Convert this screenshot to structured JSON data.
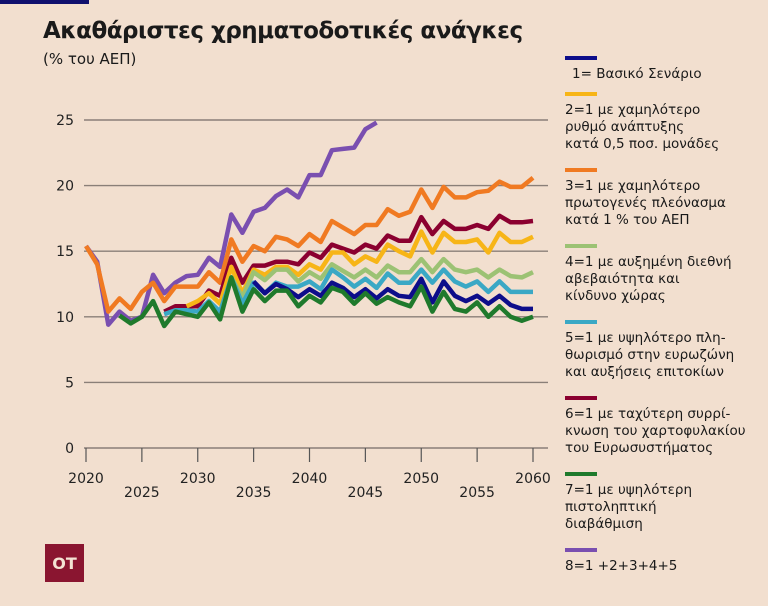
{
  "title": "Ακαθάριστες χρηματοδοτικές ανάγκες",
  "subtitle": "(% του ΑΕΠ)",
  "logo_text": "OT",
  "chart_data": {
    "type": "line",
    "title": "Ακαθάριστες χρηματοδοτικές ανάγκες",
    "ylabel": "(% του ΑΕΠ)",
    "xlim": [
      2020,
      2060
    ],
    "ylim": [
      0,
      25
    ],
    "grid": true,
    "legend_position": "right",
    "y_ticks": [
      "0",
      "5",
      "10",
      "15",
      "20",
      "25"
    ],
    "x_ticks": [
      "2020",
      "2025",
      "2030",
      "2035",
      "2040",
      "2045",
      "2050",
      "2055",
      "2060"
    ],
    "series": [
      {
        "name": "1= Βασικό Σενάριο",
        "color": "#0d0d8a",
        "start": 2035,
        "values": [
          12.7,
          11.8,
          12.5,
          12.1,
          11.5,
          12.1,
          11.6,
          12.6,
          12.2,
          11.5,
          12.1,
          11.4,
          12.1,
          11.6,
          11.5,
          12.9,
          11.1,
          12.7,
          11.6,
          11.2,
          11.6,
          11.0,
          11.6,
          10.9,
          10.6,
          10.6
        ]
      },
      {
        "name": "2=1 με χαμηλότερο\nρυθμό ανάπτυξης\nκατά 0,5 ποσ. μονάδες",
        "color": "#f7b517",
        "start": 2029,
        "values": [
          10.8,
          11.2,
          11.8,
          11.0,
          13.8,
          11.8,
          13.6,
          13.2,
          13.8,
          13.8,
          13.2,
          14.0,
          13.6,
          14.9,
          14.9,
          14.0,
          14.6,
          14.2,
          15.5,
          15.0,
          14.6,
          16.5,
          14.9,
          16.4,
          15.7,
          15.7,
          15.9,
          14.9,
          16.4,
          15.7,
          15.7,
          16.1
        ]
      },
      {
        "name": "3=1 με χαμηλότερο\nπρωτογενές πλεόνασμα\nκατά 1 % του ΑΕΠ",
        "color": "#f07a22",
        "start": 2020,
        "values": [
          15.4,
          14.0,
          10.4,
          11.4,
          10.6,
          11.9,
          12.6,
          11.2,
          12.3,
          12.3,
          12.3,
          13.4,
          12.6,
          15.9,
          14.2,
          15.4,
          15.0,
          16.1,
          15.9,
          15.4,
          16.3,
          15.7,
          17.3,
          16.8,
          16.3,
          17.0,
          17.0,
          18.2,
          17.7,
          18.0,
          19.7,
          18.3,
          19.9,
          19.1,
          19.1,
          19.5,
          19.6,
          20.3,
          19.9,
          19.9,
          20.6
        ]
      },
      {
        "name": "4=1 με αυξημένη διεθνή\nαβεβαιότητα και\nκίνδυνο χώρας",
        "color": "#9cc274",
        "start": 2033,
        "values": [
          13.0,
          11.5,
          13.4,
          12.8,
          13.6,
          13.6,
          12.7,
          13.4,
          12.9,
          14.0,
          13.5,
          13.0,
          13.6,
          13.0,
          13.9,
          13.4,
          13.4,
          14.4,
          13.4,
          14.4,
          13.6,
          13.4,
          13.6,
          13.0,
          13.6,
          13.1,
          13.0,
          13.4
        ]
      },
      {
        "name": "5=1 με υψηλότερο πλη-\nθωρισμό στην ευρωζώνη\nκαι αυξήσεις επιτοκίων",
        "color": "#3aa8c5",
        "start": 2027,
        "values": [
          10.2,
          10.5,
          10.5,
          10.4,
          11.2,
          10.4,
          13.0,
          11.0,
          12.6,
          11.8,
          12.6,
          12.3,
          12.3,
          12.7,
          12.1,
          13.6,
          13.0,
          12.3,
          12.9,
          12.2,
          13.3,
          12.6,
          12.6,
          13.6,
          12.6,
          13.6,
          12.7,
          12.3,
          12.7,
          11.9,
          12.7,
          11.9,
          11.9,
          11.9
        ]
      },
      {
        "name": "6=1 με ταχύτερη συρρί-\nκνωση του χαρτοφυλακίου\nτου Ευρωσυστήματος",
        "color": "#8b0030",
        "start": 2027,
        "values": [
          10.4,
          10.8,
          10.8,
          10.8,
          12.0,
          11.6,
          14.5,
          12.6,
          13.9,
          13.9,
          14.2,
          14.2,
          14.0,
          14.9,
          14.5,
          15.5,
          15.2,
          14.9,
          15.5,
          15.2,
          16.2,
          15.8,
          15.8,
          17.6,
          16.3,
          17.3,
          16.7,
          16.7,
          17.0,
          16.7,
          17.7,
          17.2,
          17.2,
          17.3
        ]
      },
      {
        "name": "7=1 με υψηλότερη\nπιστοληπτική\nδιαβάθμιση",
        "color": "#1f7a2c",
        "start": 2023,
        "values": [
          10.1,
          9.5,
          10.0,
          11.2,
          9.3,
          10.4,
          10.2,
          10.0,
          11.1,
          9.8,
          13.0,
          10.4,
          12.1,
          11.2,
          12.0,
          12.0,
          10.8,
          11.6,
          11.1,
          12.2,
          11.9,
          11.0,
          11.8,
          11.0,
          11.5,
          11.1,
          10.8,
          12.3,
          10.4,
          11.9,
          10.6,
          10.4,
          11.1,
          10.0,
          10.8,
          10.0,
          9.7,
          10.0
        ]
      },
      {
        "name": "8=1 +2+3+4+5",
        "color": "#7a4fb0",
        "start": 2020,
        "values": [
          15.4,
          14.2,
          9.4,
          10.4,
          9.7,
          10.0,
          13.2,
          11.8,
          12.6,
          13.1,
          13.2,
          14.5,
          13.8,
          17.8,
          16.4,
          18.0,
          18.3,
          19.2,
          19.7,
          19.1,
          20.8,
          20.8,
          22.7,
          22.8,
          22.9,
          24.3,
          24.8
        ]
      }
    ]
  }
}
